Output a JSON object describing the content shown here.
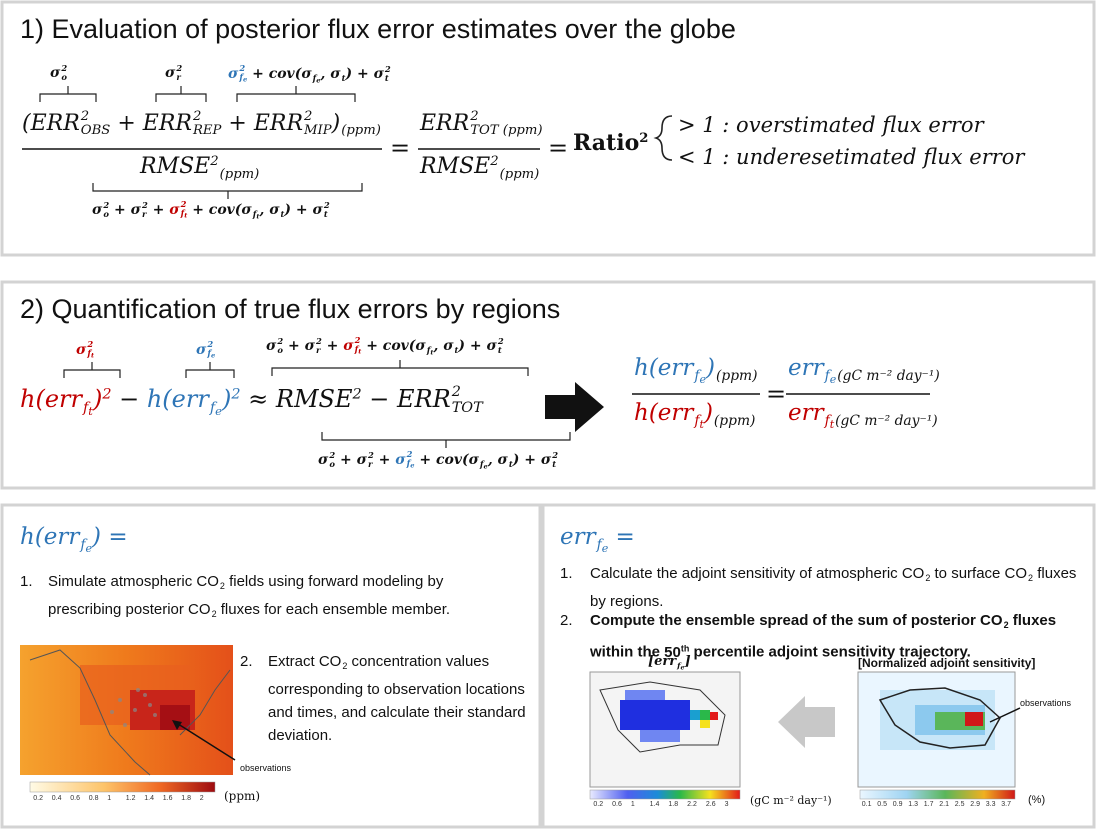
{
  "p1": {
    "title": "1) Evaluation of posterior flux error estimates over the globe",
    "above_obs": [
      {
        "b": "σ",
        "sup": "2",
        "sub": "o"
      }
    ],
    "above_rep": [
      {
        "b": "σ",
        "sup": "2",
        "sub": "r"
      }
    ],
    "above_mip": [
      {
        "b": "σ",
        "sup": "2",
        "sub": "f",
        "sub2": "e",
        "color": "#2e75b6"
      },
      " + cov(σ",
      {
        "sub": "f",
        "sub2": "e"
      },
      ", σ",
      {
        "sub": "t"
      },
      ") + ",
      {
        "b": "σ",
        "sup": "2",
        "sub": "t"
      }
    ],
    "numerator": [
      "(",
      {
        "b": "ERR",
        "sup": "2",
        "sub": "OBS"
      },
      " + ",
      {
        "b": "ERR",
        "sup": "2",
        "sub": "REP"
      },
      " + ",
      {
        "b": "ERR",
        "sup": "2",
        "sub": "MIP"
      },
      ")",
      {
        "sub": "(ppm)"
      }
    ],
    "denominator": [
      {
        "b": "RMSE",
        "sup": "2"
      },
      {
        "sub": "(ppm)"
      }
    ],
    "below": [
      {
        "b": "σ",
        "sup": "2",
        "sub": "o"
      },
      " + ",
      {
        "b": "σ",
        "sup": "2",
        "sub": "r"
      },
      " + ",
      {
        "b": "σ",
        "sup": "2",
        "sub": "f",
        "sub2": "t",
        "color": "#c00000"
      },
      " + cov(σ",
      {
        "sub": "f",
        "sub2": "t"
      },
      ", σ",
      {
        "sub": "t"
      },
      ") + ",
      {
        "b": "σ",
        "sup": "2",
        "sub": "t"
      }
    ],
    "equals_1": "=",
    "frac_num": [
      {
        "b": "ERR",
        "sup": "2",
        "sub": "TOT (ppm)"
      }
    ],
    "frac_den": [
      {
        "b": "RMSE",
        "sup": "2"
      },
      {
        "sub": "(ppm)"
      }
    ],
    "equals_2": "=",
    "ratio": [
      {
        "b": "Ratio",
        "sup": "2"
      }
    ],
    "case_over": "> 1 : overstimated flux error",
    "case_under": "< 1 : underesetimated flux error"
  },
  "p2": {
    "title": "2) Quantification of true flux errors by regions",
    "label_ft": [
      {
        "b": "σ",
        "sup": "2",
        "sub": "f",
        "sub2": "t",
        "color": "#c00000"
      }
    ],
    "label_fe": [
      {
        "b": "σ",
        "sup": "2",
        "sub": "f",
        "sub2": "e",
        "color": "#2e75b6"
      }
    ],
    "label_top": [
      {
        "b": "σ",
        "sup": "2",
        "sub": "o"
      },
      " + ",
      {
        "b": "σ",
        "sup": "2",
        "sub": "r"
      },
      " + ",
      {
        "b": "σ",
        "sup": "2",
        "sub": "f",
        "sub2": "t",
        "color": "#c00000"
      },
      " + cov(σ",
      {
        "sub": "f",
        "sub2": "t"
      },
      ", σ",
      {
        "sub": "t"
      },
      ") + ",
      {
        "b": "σ",
        "sup": "2",
        "sub": "t"
      }
    ],
    "main": [
      {
        "b": "h(err",
        "color": "#c00000"
      },
      {
        "sub": "f",
        "sub2": "t",
        "color": "#c00000"
      },
      {
        "b": ")",
        "sup": "2",
        "color": "#c00000"
      },
      " − ",
      {
        "b": "h(err",
        "color": "#2e75b6"
      },
      {
        "sub": "f",
        "sub2": "e",
        "color": "#2e75b6"
      },
      {
        "b": ")",
        "sup": "2",
        "color": "#2e75b6"
      },
      " ≈ ",
      {
        "b": "RMSE",
        "sup": "2"
      },
      " − ",
      {
        "b": "ERR",
        "sup": "2",
        "sub": "TOT"
      }
    ],
    "label_bottom": [
      {
        "b": "σ",
        "sup": "2",
        "sub": "o"
      },
      " + ",
      {
        "b": "σ",
        "sup": "2",
        "sub": "r"
      },
      " + ",
      {
        "b": "σ",
        "sup": "2",
        "sub": "f",
        "sub2": "e",
        "color": "#2e75b6"
      },
      " + cov(σ",
      {
        "sub": "f",
        "sub2": "e"
      },
      ", σ",
      {
        "sub": "t"
      },
      ") + ",
      {
        "b": "σ",
        "sup": "2",
        "sub": "t"
      }
    ],
    "ratio_num": [
      {
        "b": "h(err",
        "color": "#2e75b6"
      },
      {
        "sub": "f",
        "sub2": "e",
        "color": "#2e75b6"
      },
      {
        "b": ")",
        "color": "#2e75b6"
      },
      {
        "sub": "(ppm)"
      }
    ],
    "ratio_den": [
      {
        "b": "h(err",
        "color": "#c00000"
      },
      {
        "sub": "f",
        "sub2": "t",
        "color": "#c00000"
      },
      {
        "b": ")",
        "color": "#c00000"
      },
      {
        "sub": "(ppm)"
      }
    ],
    "equals": "=",
    "err_num": [
      {
        "b": "err",
        "sub": "f",
        "sub2": "e",
        "color": "#2e75b6"
      },
      {
        "sub": "(gC m⁻² day⁻¹)"
      }
    ],
    "err_den": [
      {
        "b": "err",
        "sub": "f",
        "sub2": "t",
        "color": "#c00000"
      },
      {
        "sub": "(gC m⁻² day⁻¹)"
      }
    ]
  },
  "left": {
    "heading": [
      {
        "b": "h(err"
      },
      {
        "sub": "f",
        "sub2": "e"
      },
      {
        "b": ") ="
      }
    ],
    "item1_num": "1.",
    "item1": [
      "Simulate atmospheric CO",
      {
        "sub": "2"
      },
      " fields using forward modeling by prescribing posterior CO",
      {
        "sub": "2"
      },
      " fluxes for each ensemble member."
    ],
    "item2_num": "2.",
    "item2": [
      "Extract CO",
      {
        "sub": "2"
      },
      " concentration values corresponding to observation locations and times, and calculate their standard deviation."
    ],
    "annotation": "observations",
    "colorbar_ticks": [
      0.2,
      0.4,
      0.6,
      0.8,
      1,
      1.2,
      1.4,
      1.6,
      1.8,
      2
    ],
    "colorbar_unit": "(ppm)"
  },
  "right": {
    "heading": [
      {
        "b": "err",
        "sub": "f",
        "sub2": "e"
      },
      {
        "b": " ="
      }
    ],
    "item1_num": "1.",
    "item1": [
      "Calculate the adjoint sensitivity of atmospheric CO",
      {
        "sub": "2"
      },
      " to surface CO",
      {
        "sub": "2"
      },
      " fluxes by regions."
    ],
    "item2_num": "2.",
    "item2": [
      "Compute the ensemble spread of the sum of posterior CO",
      {
        "sub": "2"
      },
      " fluxes within the ",
      {
        "b": "50",
        "sup": "th"
      },
      " percentile adjoint sensitivity trajectory."
    ],
    "map1_title": [
      "[",
      {
        "b": "err",
        "sub": "f",
        "sub2": "e"
      },
      "]"
    ],
    "map2_title": "[Normalized adjoint sensitivity]",
    "annotation": "observations",
    "colorbar1_ticks": [
      0.2,
      0.6,
      1,
      1.4,
      1.8,
      2.2,
      2.6,
      3
    ],
    "colorbar1_unit": "(gC m⁻² day⁻¹)",
    "colorbar2_ticks": [
      0.1,
      0.5,
      0.9,
      1.3,
      1.7,
      2.1,
      2.5,
      2.9,
      3.3,
      3.7
    ],
    "colorbar2_unit": "(%)"
  }
}
